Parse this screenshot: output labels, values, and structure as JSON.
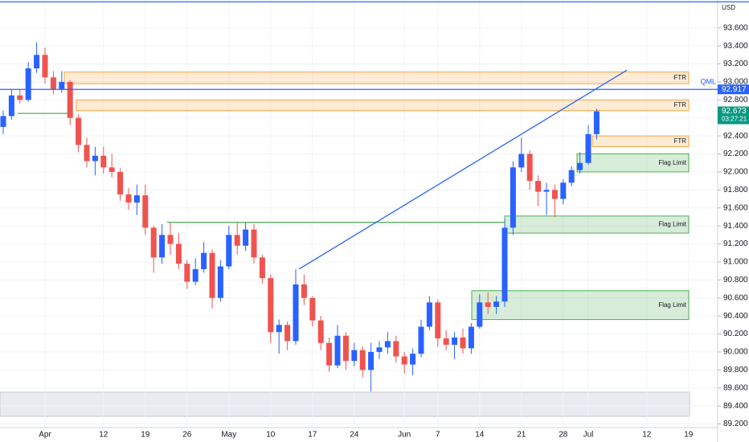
{
  "chart_data": {
    "type": "candlestick",
    "categories": [
      null,
      null,
      null,
      null,
      null,
      "Apr",
      null,
      null,
      null,
      null,
      null,
      null,
      "12",
      null,
      null,
      null,
      null,
      "19",
      null,
      null,
      null,
      null,
      "26",
      null,
      null,
      null,
      null,
      "May",
      null,
      null,
      null,
      null,
      "10",
      null,
      null,
      null,
      null,
      "17",
      null,
      null,
      null,
      null,
      "24",
      null,
      null,
      null,
      null,
      null,
      "Jun",
      null,
      null,
      null,
      "7",
      null,
      null,
      null,
      null,
      "14",
      null,
      null,
      null,
      null,
      "21",
      null,
      null,
      null,
      null,
      "28",
      null,
      null,
      "Jul",
      null,
      null,
      null,
      null,
      null,
      null,
      "12",
      null,
      null,
      null,
      null,
      "19",
      null,
      null,
      null
    ],
    "open": [
      92.5,
      92.62,
      92.85,
      92.8,
      93.15,
      93.3,
      93.05,
      92.92,
      93.0,
      92.6,
      92.3,
      92.12,
      92.18,
      92.05,
      92.0,
      91.75,
      91.66,
      91.74,
      91.38,
      91.05,
      91.3,
      91.2,
      90.98,
      90.78,
      90.92,
      91.1,
      90.6,
      90.95,
      91.3,
      91.18,
      91.36,
      91.05,
      90.82,
      90.22,
      90.3,
      90.12,
      90.75,
      90.6,
      90.35,
      90.1,
      89.85,
      90.18,
      89.9,
      90.02,
      89.8,
      90.0,
      90.05,
      90.12,
      89.95,
      89.86,
      89.98,
      90.28,
      90.55,
      90.15,
      90.08,
      90.16,
      90.04,
      90.28,
      90.55,
      90.5,
      90.56,
      91.38,
      92.05,
      92.2,
      91.9,
      91.78,
      91.8,
      91.7,
      91.88,
      92.02,
      92.1,
      92.42,
      null,
      null,
      null,
      null,
      null,
      null,
      null,
      null,
      null,
      null,
      null,
      null,
      null,
      null
    ],
    "high": [
      92.68,
      92.92,
      92.92,
      93.22,
      93.44,
      93.38,
      93.12,
      93.12,
      93.02,
      92.64,
      92.38,
      92.28,
      92.28,
      92.2,
      92.04,
      91.82,
      91.86,
      91.86,
      91.4,
      91.42,
      91.44,
      91.32,
      91.02,
      91.04,
      91.22,
      91.14,
      91.02,
      91.4,
      91.44,
      91.44,
      91.42,
      91.08,
      90.86,
      90.36,
      90.34,
      90.92,
      90.86,
      90.62,
      90.4,
      90.16,
      90.3,
      90.22,
      90.1,
      90.06,
      90.1,
      90.12,
      90.22,
      90.18,
      90.0,
      90.04,
      90.36,
      90.62,
      90.58,
      90.24,
      90.22,
      90.26,
      90.32,
      90.64,
      90.66,
      90.62,
      91.48,
      92.12,
      92.38,
      92.24,
      91.96,
      91.88,
      91.86,
      91.92,
      92.06,
      92.22,
      92.52,
      92.7,
      null,
      null,
      null,
      null,
      null,
      null,
      null,
      null,
      null,
      null,
      null,
      null,
      null,
      null
    ],
    "low": [
      92.42,
      92.58,
      92.76,
      92.78,
      93.1,
      92.98,
      92.86,
      92.88,
      92.52,
      92.22,
      92.05,
      91.96,
      91.98,
      91.94,
      91.68,
      91.58,
      91.52,
      91.3,
      90.88,
      90.98,
      91.08,
      90.92,
      90.7,
      90.74,
      90.88,
      90.48,
      90.56,
      90.92,
      91.08,
      91.12,
      90.98,
      90.76,
      90.1,
      89.98,
      90.02,
      90.08,
      90.52,
      90.28,
      90.02,
      89.78,
      89.82,
      89.8,
      89.84,
      89.72,
      89.56,
      89.92,
      89.98,
      89.88,
      89.76,
      89.74,
      89.94,
      90.24,
      90.06,
      90.02,
      89.92,
      89.98,
      89.98,
      90.26,
      90.42,
      90.42,
      90.5,
      91.3,
      92.0,
      91.8,
      91.62,
      91.52,
      91.5,
      91.64,
      91.84,
      91.98,
      92.08,
      92.36,
      null,
      null,
      null,
      null,
      null,
      null,
      null,
      null,
      null,
      null,
      null,
      null,
      null,
      null
    ],
    "close": [
      92.62,
      92.85,
      92.8,
      93.15,
      93.3,
      93.05,
      92.92,
      93.0,
      92.6,
      92.3,
      92.12,
      92.18,
      92.05,
      92.0,
      91.75,
      91.66,
      91.74,
      91.38,
      91.05,
      91.3,
      91.2,
      90.98,
      90.78,
      90.92,
      91.1,
      90.6,
      90.95,
      91.3,
      91.18,
      91.36,
      91.05,
      90.82,
      90.22,
      90.3,
      90.12,
      90.75,
      90.6,
      90.35,
      90.1,
      89.85,
      90.18,
      89.9,
      90.02,
      89.8,
      90.0,
      90.05,
      90.12,
      89.95,
      89.86,
      89.98,
      90.28,
      90.55,
      90.15,
      90.08,
      90.16,
      90.04,
      90.28,
      90.55,
      90.5,
      90.56,
      91.38,
      92.05,
      92.2,
      91.9,
      91.78,
      91.8,
      91.7,
      91.88,
      92.02,
      92.1,
      92.42,
      92.673,
      null,
      null,
      null,
      null,
      null,
      null,
      null,
      null,
      null,
      null,
      null,
      null,
      null,
      null
    ],
    "up_color": "#2962ff",
    "down_color": "#ef5350",
    "ylim": [
      89.16,
      93.91
    ],
    "yticks": [
      {
        "value": 93.6,
        "label": "93.600"
      },
      {
        "value": 93.4,
        "label": "93.400"
      },
      {
        "value": 93.2,
        "label": "93.200"
      },
      {
        "value": 93.0,
        "label": "93.000"
      },
      {
        "value": 92.8,
        "label": "92.800"
      },
      {
        "value": 92.6,
        "label": "92.600"
      },
      {
        "value": 92.4,
        "label": "92.400"
      },
      {
        "value": 92.2,
        "label": "92.200"
      },
      {
        "value": 92.0,
        "label": "92.000"
      },
      {
        "value": 91.8,
        "label": "91.800"
      },
      {
        "value": 91.6,
        "label": "91.600"
      },
      {
        "value": 91.4,
        "label": "91.400"
      },
      {
        "value": 91.2,
        "label": "91.200"
      },
      {
        "value": 91.0,
        "label": "91.000"
      },
      {
        "value": 90.8,
        "label": "90.800"
      },
      {
        "value": 90.6,
        "label": "90.600"
      },
      {
        "value": 90.4,
        "label": "90.400"
      },
      {
        "value": 90.2,
        "label": "90.200"
      },
      {
        "value": 90.0,
        "label": "90.000"
      },
      {
        "value": 89.8,
        "label": "89.800"
      },
      {
        "value": 89.6,
        "label": "89.600"
      },
      {
        "value": 89.4,
        "label": "89.400"
      },
      {
        "value": 89.2,
        "label": "89.200"
      }
    ],
    "currency": "USD",
    "zones": [
      {
        "label": "FTR",
        "top": 93.11,
        "bottom": 92.98,
        "color": "#f7a540"
      },
      {
        "label": "FTR",
        "top": 92.8,
        "bottom": 92.68,
        "color": "#f7a540"
      },
      {
        "label": "FTR",
        "top": 92.4,
        "bottom": 92.28,
        "color": "#f7a540"
      },
      {
        "label": "Flag Limit",
        "top": 92.2,
        "bottom": 92.0,
        "color": "#4caf50"
      },
      {
        "label": "Flag Limit",
        "top": 91.51,
        "bottom": 91.32,
        "color": "#4caf50"
      },
      {
        "label": "Flag Limit",
        "top": 90.68,
        "bottom": 90.36,
        "color": "#4caf50"
      }
    ],
    "levels": [
      {
        "value": 93.89,
        "color": "#2962ff"
      },
      {
        "label": "QML",
        "value": 92.917,
        "color": "#2962ff"
      },
      {
        "value": 92.65,
        "color": "#4caf50"
      },
      {
        "value": 91.44,
        "color": "#4caf50"
      }
    ],
    "trend_line": [
      90.92,
      93.13
    ],
    "last_price": {
      "value": 92.673,
      "countdown": "03:27:21",
      "color": "#089981"
    }
  }
}
